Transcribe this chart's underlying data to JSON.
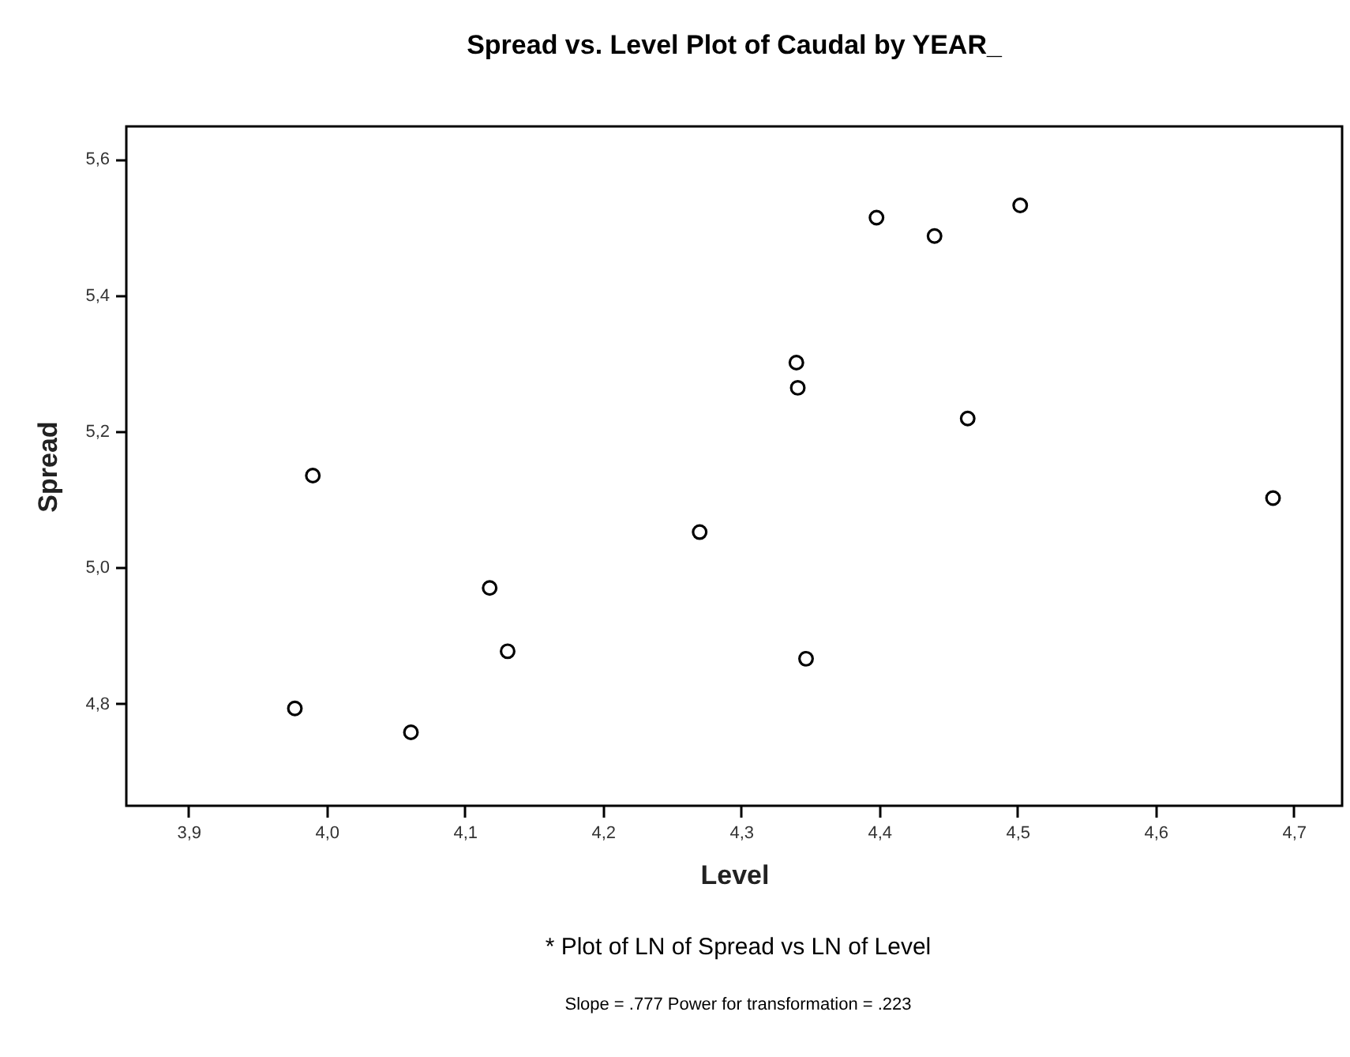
{
  "chart_data": {
    "type": "scatter",
    "title": "Spread vs. Level Plot of Caudal by YEAR_",
    "xlabel": "Level",
    "ylabel": "Spread",
    "x": [
      3.977,
      3.99,
      4.061,
      4.118,
      4.131,
      4.27,
      4.34,
      4.341,
      4.347,
      4.398,
      4.44,
      4.464,
      4.502,
      4.685
    ],
    "values": [
      4.793,
      5.135,
      4.758,
      4.97,
      4.877,
      5.052,
      5.301,
      5.264,
      4.866,
      5.514,
      5.487,
      5.219,
      5.532,
      5.102
    ],
    "color": "#000000",
    "marker": "circle",
    "grid": false,
    "xlim": [
      3.855,
      4.735
    ],
    "ylim": [
      4.65,
      5.648
    ],
    "xticks": [
      {
        "value": 3.9,
        "label": "3,9"
      },
      {
        "value": 4.0,
        "label": "4,0"
      },
      {
        "value": 4.1,
        "label": "4,1"
      },
      {
        "value": 4.2,
        "label": "4,2"
      },
      {
        "value": 4.3,
        "label": "4,3"
      },
      {
        "value": 4.4,
        "label": "4,4"
      },
      {
        "value": 4.5,
        "label": "4,5"
      },
      {
        "value": 4.6,
        "label": "4,6"
      },
      {
        "value": 4.7,
        "label": "4,7"
      }
    ],
    "yticks": [
      {
        "value": 4.8,
        "label": "4,8"
      },
      {
        "value": 5.0,
        "label": "5,0"
      },
      {
        "value": 5.2,
        "label": "5,2"
      },
      {
        "value": 5.4,
        "label": "5,4"
      },
      {
        "value": 5.6,
        "label": "5,6"
      }
    ],
    "annotations": [
      "* Plot of LN of Spread vs LN of Level",
      "Slope = .777 Power for transformation = .223"
    ]
  }
}
